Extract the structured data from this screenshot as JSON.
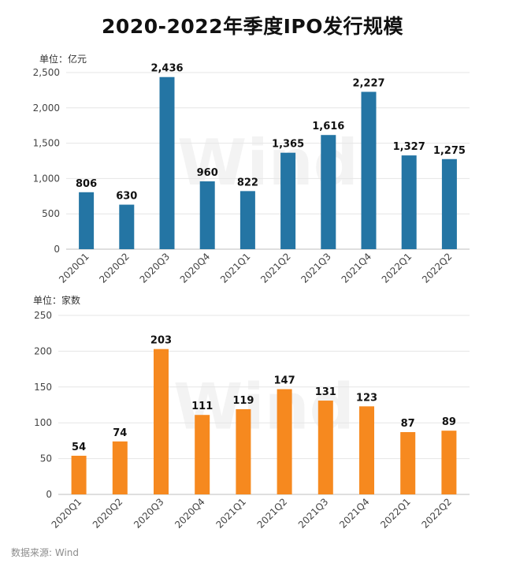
{
  "title": "2020-2022年季度IPO发行规模",
  "source": "数据来源: Wind",
  "watermark": "Wind",
  "colors": {
    "amount_bar": "#2475a4",
    "count_bar": "#f6891f"
  },
  "chart_data": [
    {
      "type": "bar",
      "unit_label": "单位：亿元",
      "categories": [
        "2020Q1",
        "2020Q2",
        "2020Q3",
        "2020Q4",
        "2021Q1",
        "2021Q2",
        "2021Q3",
        "2021Q4",
        "2022Q1",
        "2022Q2"
      ],
      "values": [
        806,
        630,
        2436,
        960,
        822,
        1365,
        1616,
        2227,
        1327,
        1275
      ],
      "data_labels": [
        "806",
        "630",
        "2,436",
        "960",
        "822",
        "1,365",
        "1,616",
        "2,227",
        "1,327",
        "1,275"
      ],
      "ylim": [
        0,
        2500
      ],
      "yticks": [
        0,
        500,
        1000,
        1500,
        2000,
        2500
      ],
      "ytick_labels": [
        "0",
        "500",
        "1,000",
        "1,500",
        "2,000",
        "2,500"
      ],
      "grid": true
    },
    {
      "type": "bar",
      "unit_label": "单位：家数",
      "categories": [
        "2020Q1",
        "2020Q2",
        "2020Q3",
        "2020Q4",
        "2021Q1",
        "2021Q2",
        "2021Q3",
        "2021Q4",
        "2022Q1",
        "2022Q2"
      ],
      "values": [
        54,
        74,
        203,
        111,
        119,
        147,
        131,
        123,
        87,
        89
      ],
      "data_labels": [
        "54",
        "74",
        "203",
        "111",
        "119",
        "147",
        "131",
        "123",
        "87",
        "89"
      ],
      "ylim": [
        0,
        250
      ],
      "yticks": [
        0,
        50,
        100,
        150,
        200,
        250
      ],
      "ytick_labels": [
        "0",
        "50",
        "100",
        "150",
        "200",
        "250"
      ],
      "grid": true
    }
  ]
}
